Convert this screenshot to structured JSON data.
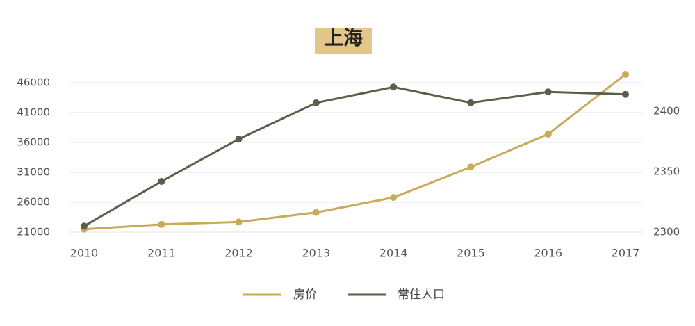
{
  "chart_data": {
    "type": "line",
    "title": "上海",
    "categories": [
      "2010",
      "2011",
      "2012",
      "2013",
      "2014",
      "2015",
      "2016",
      "2017"
    ],
    "series": [
      {
        "name": "房价",
        "color": "#c9a95a",
        "values": [
          21500,
          22300,
          22700,
          24300,
          26800,
          31900,
          37400,
          47400
        ]
      },
      {
        "name": "常住人口",
        "color": "#5a5e4a",
        "axis": "y2",
        "values": [
          2305,
          2342,
          2377,
          2407,
          2420,
          2407,
          2416,
          2414
        ]
      }
    ],
    "ylim": [
      21000,
      46000
    ],
    "yticks": [
      21000,
      26000,
      31000,
      36000,
      41000,
      46000
    ],
    "y2lim": [
      2300,
      2423.6
    ],
    "y2ticks": [
      2300,
      2350,
      2400
    ],
    "grid": true,
    "legend": "bottom"
  }
}
